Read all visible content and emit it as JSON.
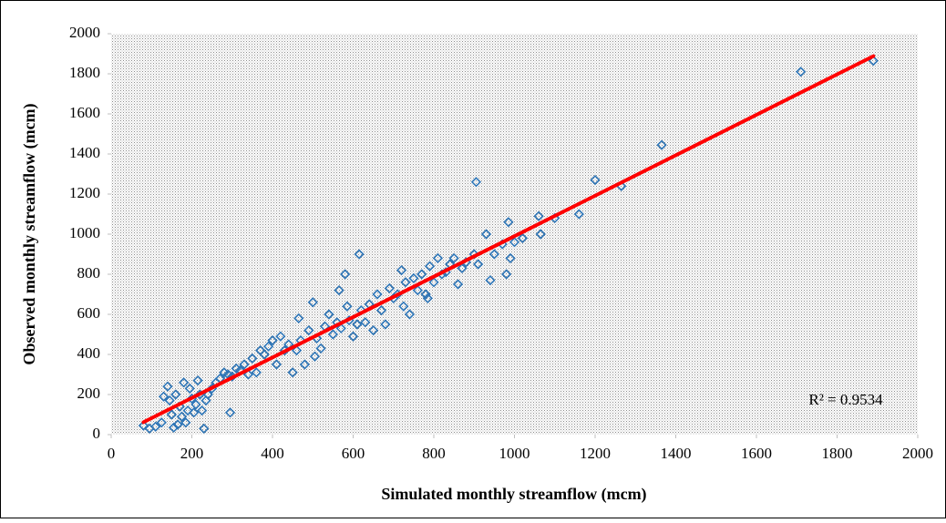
{
  "chart_data": {
    "type": "scatter",
    "xlabel": "Simulated monthly streamflow (mcm)",
    "ylabel": "Observed monthly streamflow (mcm)",
    "annotation": "R² = 0.9534",
    "color": "#2e75b6",
    "trend_color": "#ff0000",
    "xlim": [
      0,
      2000
    ],
    "ylim": [
      0,
      2000
    ],
    "xticks": [
      0,
      200,
      400,
      600,
      800,
      1000,
      1200,
      1400,
      1600,
      1800,
      2000
    ],
    "yticks": [
      0,
      200,
      400,
      600,
      800,
      1000,
      1200,
      1400,
      1600,
      1800,
      2000
    ],
    "x": [
      80,
      95,
      110,
      125,
      130,
      140,
      145,
      150,
      155,
      160,
      165,
      170,
      175,
      180,
      185,
      190,
      195,
      200,
      205,
      210,
      215,
      220,
      225,
      230,
      235,
      240,
      250,
      260,
      270,
      280,
      290,
      295,
      300,
      310,
      320,
      330,
      340,
      350,
      360,
      370,
      380,
      390,
      400,
      410,
      420,
      430,
      440,
      450,
      460,
      465,
      470,
      480,
      490,
      500,
      505,
      510,
      520,
      530,
      540,
      550,
      560,
      565,
      570,
      580,
      585,
      590,
      600,
      610,
      615,
      620,
      630,
      640,
      650,
      660,
      670,
      680,
      690,
      700,
      710,
      720,
      725,
      730,
      740,
      750,
      760,
      770,
      780,
      785,
      790,
      800,
      810,
      820,
      830,
      840,
      850,
      860,
      870,
      880,
      900,
      905,
      910,
      930,
      940,
      950,
      970,
      980,
      985,
      990,
      1000,
      1020,
      1060,
      1065,
      1100,
      1160,
      1200,
      1265,
      1365,
      1710,
      1890
    ],
    "values": [
      45,
      30,
      40,
      60,
      190,
      240,
      170,
      100,
      35,
      200,
      50,
      140,
      90,
      260,
      60,
      120,
      230,
      180,
      110,
      150,
      270,
      200,
      120,
      30,
      170,
      200,
      230,
      260,
      280,
      310,
      300,
      110,
      290,
      330,
      320,
      350,
      300,
      380,
      310,
      420,
      400,
      440,
      470,
      350,
      490,
      420,
      450,
      310,
      420,
      580,
      470,
      350,
      520,
      660,
      390,
      480,
      430,
      540,
      600,
      500,
      560,
      720,
      530,
      800,
      640,
      570,
      490,
      550,
      900,
      620,
      560,
      650,
      520,
      700,
      620,
      550,
      730,
      680,
      700,
      820,
      640,
      760,
      600,
      780,
      720,
      800,
      700,
      680,
      840,
      760,
      880,
      800,
      810,
      850,
      880,
      750,
      830,
      860,
      900,
      1260,
      850,
      1000,
      770,
      900,
      950,
      800,
      1060,
      880,
      960,
      980,
      1090,
      1000,
      1080,
      1100,
      1270,
      1240,
      1445,
      1810,
      1865
    ],
    "trendline": {
      "x": [
        80,
        1890
      ],
      "y": [
        62,
        1888
      ]
    }
  }
}
